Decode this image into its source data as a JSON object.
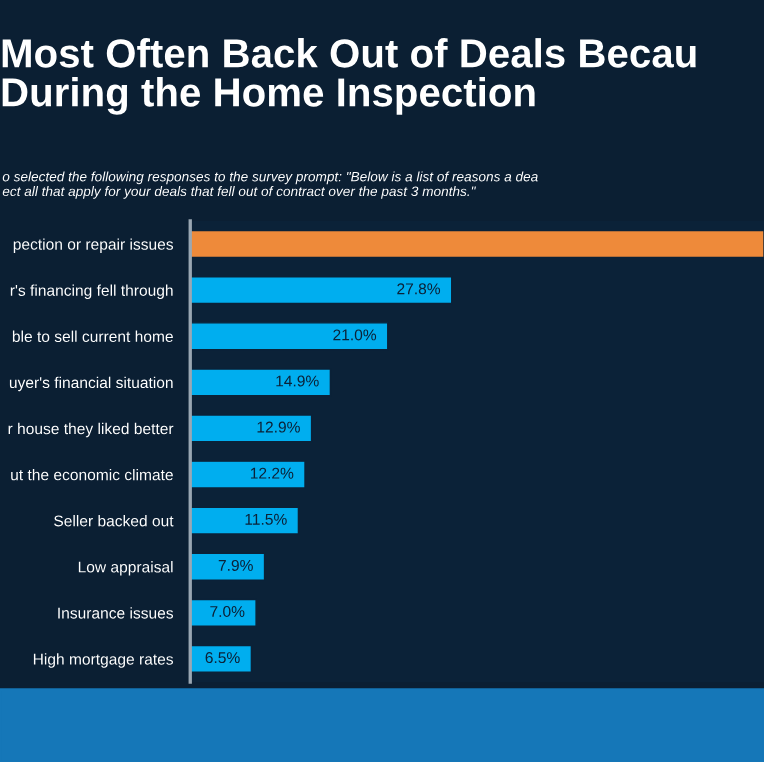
{
  "chart_data": {
    "type": "bar",
    "orientation": "horizontal",
    "title": "Most Often Back Out of Deals Becau\nDuring the Home Inspection",
    "subtitle": "o selected the following responses to the survey prompt: \"Below is a list of reasons a dea\nect all that apply for your deals that fell out of contract over the past 3 months.\"",
    "categories": [
      "pection or repair issues",
      "r's financing fell through",
      "ble to sell current home",
      "uyer's financial situation",
      "r house they liked better",
      "ut the economic climate",
      "Seller backed out",
      "Low appraisal",
      "Insurance issues",
      "High mortgage rates"
    ],
    "values": [
      61,
      27.8,
      21.0,
      14.9,
      12.9,
      12.2,
      11.5,
      7.9,
      7.0,
      6.5
    ],
    "colors": [
      "#ee8a3a",
      "#00aeef",
      "#00aeef",
      "#00aeef",
      "#00aeef",
      "#00aeef",
      "#00aeef",
      "#00aeef",
      "#00aeef",
      "#00aeef"
    ],
    "value_labels": [
      null,
      "27.8%",
      "21.0%",
      "14.9%",
      "12.9%",
      "12.2%",
      "11.5%",
      "7.9%",
      "7.0%",
      "6.5%"
    ],
    "xlim": [
      0,
      61
    ],
    "tick_labels": "y",
    "grid": false,
    "legend": false
  }
}
